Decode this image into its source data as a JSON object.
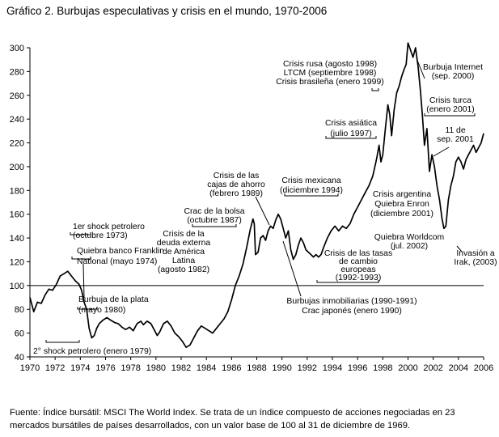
{
  "chart_data": {
    "type": "line",
    "title": "Gráfico 2. Burbujas especulativas y crisis en el mundo, 1970-2006",
    "xlabel": "",
    "ylabel": "",
    "xlim": [
      1970,
      2006
    ],
    "ylim": [
      40,
      300
    ],
    "x_ticks": [
      1970,
      1972,
      1974,
      1976,
      1978,
      1980,
      1982,
      1984,
      1986,
      1988,
      1990,
      1992,
      1994,
      1996,
      1998,
      2000,
      2002,
      2004,
      2006
    ],
    "y_ticks": [
      40,
      60,
      80,
      100,
      120,
      140,
      160,
      180,
      200,
      220,
      240,
      260,
      280,
      300
    ],
    "reference_line": 100,
    "series": [
      {
        "name": "MSCI The World Index",
        "points": [
          [
            1970.0,
            90
          ],
          [
            1970.3,
            78
          ],
          [
            1970.6,
            86
          ],
          [
            1970.9,
            85
          ],
          [
            1971.2,
            92
          ],
          [
            1971.5,
            97
          ],
          [
            1971.8,
            96
          ],
          [
            1972.1,
            101
          ],
          [
            1972.4,
            108
          ],
          [
            1972.7,
            110
          ],
          [
            1973.0,
            112
          ],
          [
            1973.3,
            108
          ],
          [
            1973.6,
            104
          ],
          [
            1973.9,
            101
          ],
          [
            1974.1,
            96
          ],
          [
            1974.3,
            86
          ],
          [
            1974.5,
            80
          ],
          [
            1974.7,
            64
          ],
          [
            1974.9,
            56
          ],
          [
            1975.1,
            58
          ],
          [
            1975.3,
            64
          ],
          [
            1975.5,
            68
          ],
          [
            1975.8,
            71
          ],
          [
            1976.1,
            73
          ],
          [
            1976.4,
            71
          ],
          [
            1976.7,
            69
          ],
          [
            1977.0,
            68
          ],
          [
            1977.3,
            65
          ],
          [
            1977.6,
            63
          ],
          [
            1977.9,
            65
          ],
          [
            1978.2,
            62
          ],
          [
            1978.5,
            68
          ],
          [
            1978.8,
            70
          ],
          [
            1979.0,
            67
          ],
          [
            1979.3,
            70
          ],
          [
            1979.6,
            68
          ],
          [
            1979.9,
            62
          ],
          [
            1980.1,
            58
          ],
          [
            1980.3,
            61
          ],
          [
            1980.6,
            68
          ],
          [
            1980.9,
            70
          ],
          [
            1981.2,
            66
          ],
          [
            1981.5,
            60
          ],
          [
            1981.8,
            57
          ],
          [
            1982.1,
            53
          ],
          [
            1982.4,
            48
          ],
          [
            1982.7,
            50
          ],
          [
            1983.0,
            56
          ],
          [
            1983.3,
            62
          ],
          [
            1983.6,
            66
          ],
          [
            1983.9,
            64
          ],
          [
            1984.2,
            62
          ],
          [
            1984.5,
            60
          ],
          [
            1984.8,
            64
          ],
          [
            1985.1,
            68
          ],
          [
            1985.4,
            72
          ],
          [
            1985.7,
            78
          ],
          [
            1986.0,
            88
          ],
          [
            1986.3,
            100
          ],
          [
            1986.6,
            108
          ],
          [
            1986.9,
            118
          ],
          [
            1987.2,
            132
          ],
          [
            1987.5,
            148
          ],
          [
            1987.7,
            156
          ],
          [
            1987.8,
            152
          ],
          [
            1987.9,
            126
          ],
          [
            1988.1,
            128
          ],
          [
            1988.3,
            140
          ],
          [
            1988.5,
            142
          ],
          [
            1988.7,
            138
          ],
          [
            1988.9,
            146
          ],
          [
            1989.1,
            150
          ],
          [
            1989.3,
            148
          ],
          [
            1989.5,
            155
          ],
          [
            1989.7,
            160
          ],
          [
            1989.9,
            156
          ],
          [
            1990.1,
            148
          ],
          [
            1990.3,
            140
          ],
          [
            1990.5,
            146
          ],
          [
            1990.7,
            130
          ],
          [
            1990.9,
            122
          ],
          [
            1991.1,
            126
          ],
          [
            1991.3,
            134
          ],
          [
            1991.5,
            140
          ],
          [
            1991.7,
            136
          ],
          [
            1991.9,
            130
          ],
          [
            1992.1,
            128
          ],
          [
            1992.3,
            126
          ],
          [
            1992.5,
            124
          ],
          [
            1992.7,
            126
          ],
          [
            1992.9,
            124
          ],
          [
            1993.1,
            126
          ],
          [
            1993.3,
            132
          ],
          [
            1993.6,
            140
          ],
          [
            1993.9,
            146
          ],
          [
            1994.2,
            150
          ],
          [
            1994.5,
            146
          ],
          [
            1994.8,
            150
          ],
          [
            1995.1,
            148
          ],
          [
            1995.4,
            152
          ],
          [
            1995.7,
            160
          ],
          [
            1996.0,
            166
          ],
          [
            1996.3,
            172
          ],
          [
            1996.6,
            178
          ],
          [
            1996.9,
            184
          ],
          [
            1997.2,
            192
          ],
          [
            1997.5,
            206
          ],
          [
            1997.7,
            218
          ],
          [
            1997.85,
            204
          ],
          [
            1998.0,
            210
          ],
          [
            1998.2,
            232
          ],
          [
            1998.4,
            252
          ],
          [
            1998.55,
            244
          ],
          [
            1998.7,
            226
          ],
          [
            1998.9,
            248
          ],
          [
            1999.1,
            262
          ],
          [
            1999.3,
            268
          ],
          [
            1999.5,
            276
          ],
          [
            1999.7,
            282
          ],
          [
            1999.85,
            286
          ],
          [
            2000.0,
            304
          ],
          [
            2000.2,
            298
          ],
          [
            2000.4,
            292
          ],
          [
            2000.6,
            300
          ],
          [
            2000.8,
            284
          ],
          [
            2001.0,
            262
          ],
          [
            2001.15,
            242
          ],
          [
            2001.3,
            218
          ],
          [
            2001.5,
            232
          ],
          [
            2001.7,
            196
          ],
          [
            2001.9,
            210
          ],
          [
            2002.1,
            200
          ],
          [
            2002.3,
            184
          ],
          [
            2002.5,
            172
          ],
          [
            2002.7,
            156
          ],
          [
            2002.85,
            148
          ],
          [
            2003.0,
            150
          ],
          [
            2003.2,
            172
          ],
          [
            2003.4,
            184
          ],
          [
            2003.6,
            192
          ],
          [
            2003.8,
            204
          ],
          [
            2004.0,
            208
          ],
          [
            2004.2,
            204
          ],
          [
            2004.4,
            198
          ],
          [
            2004.6,
            206
          ],
          [
            2004.8,
            210
          ],
          [
            2005.0,
            214
          ],
          [
            2005.2,
            218
          ],
          [
            2005.4,
            212
          ],
          [
            2005.6,
            216
          ],
          [
            2005.8,
            220
          ],
          [
            2006.0,
            228
          ]
        ]
      }
    ],
    "annotations": [
      {
        "id": "shock-1973",
        "lines": [
          "1er shock petrolero",
          "(octubre 1973)"
        ]
      },
      {
        "id": "franklin-1974",
        "lines": [
          "Quiebra banco Franklin",
          "National (mayo 1974)"
        ]
      },
      {
        "id": "plata-1980",
        "lines": [
          "Burbuja de la plata",
          "(mayo  1980)"
        ]
      },
      {
        "id": "shock-1979",
        "lines": [
          "2° shock petrolero (enero 1979)"
        ]
      },
      {
        "id": "deuda-1982",
        "lines": [
          "Crisis de la",
          "deuda externa",
          "de América",
          "Latina",
          "(agosto 1982)"
        ]
      },
      {
        "id": "bolsa-1987",
        "lines": [
          "Crac de la bolsa",
          "(octubre 1987)"
        ]
      },
      {
        "id": "cajas-1989",
        "lines": [
          "Crisis de las",
          "cajas de ahorro",
          "(febrero 1989)"
        ]
      },
      {
        "id": "inmob-1990",
        "lines": [
          "Burbujas inmobiliarias (1990-1991)",
          "Crac japonés (enero 1990)"
        ]
      },
      {
        "id": "mexicana-1994",
        "lines": [
          "Crisis mexicana",
          "(diciembre 1994)"
        ]
      },
      {
        "id": "tasas-1992",
        "lines": [
          "Crisis de las tasas",
          "de cambio",
          "europeas",
          "(1992-1993)"
        ]
      },
      {
        "id": "asiatica-1997",
        "lines": [
          "Crisis asiática",
          "(julio 1997)"
        ]
      },
      {
        "id": "rusa-1998",
        "lines": [
          "Crisis rusa (agosto 1998)",
          "LTCM (septiembre 1998)",
          "Crisis brasileña (enero 1999)"
        ]
      },
      {
        "id": "internet-2000",
        "lines": [
          "Burbuja Internet",
          "(sep. 2000)"
        ]
      },
      {
        "id": "turca-2001",
        "lines": [
          "Crisis turca",
          "(enero 2001)"
        ]
      },
      {
        "id": "sep11-2001",
        "lines": [
          "11 de",
          "sep. 2001"
        ]
      },
      {
        "id": "argentina-2001",
        "lines": [
          "Crisis argentina",
          "Quiebra Enron",
          "(diciembre 2001)"
        ]
      },
      {
        "id": "worldcom-2002",
        "lines": [
          "Quiebra Worldcom",
          "(jul. 2002)"
        ]
      },
      {
        "id": "irak-2003",
        "lines": [
          "Invasión a",
          "Irak, (2003)"
        ]
      }
    ]
  },
  "source_note": "Fuente: Índice bursátil: MSCI The World Index. Se trata de un índice compuesto de acciones negociadas en 23 mercados bursátiles de países desarrollados,  con un valor base de 100 al 31 de diciembre de 1969."
}
